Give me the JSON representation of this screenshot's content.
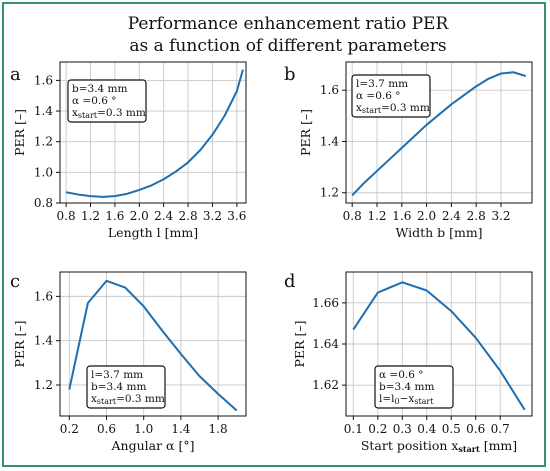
{
  "figure": {
    "title_line1": "Performance enhancement ratio PER",
    "title_line2": "as a function of different parameters",
    "accent_color": "#3a8f7c",
    "line_color": "#1f6fb0"
  },
  "chart_data": [
    {
      "type": "line",
      "panel": "a",
      "xlabel": "Length l [mm]",
      "ylabel": "PER [–]",
      "xlim": [
        0.7,
        3.75
      ],
      "ylim": [
        0.8,
        1.72
      ],
      "xticks": [
        0.8,
        1.2,
        1.6,
        2.0,
        2.4,
        2.8,
        3.2,
        3.6
      ],
      "xtick_labels": [
        "0.8",
        "1.2",
        "1.6",
        "2.0",
        "2.4",
        "2.8",
        "3.2",
        "3.6"
      ],
      "yticks": [
        0.8,
        1.0,
        1.2,
        1.4,
        1.6
      ],
      "ytick_labels": [
        "0.8",
        "1.0",
        "1.2",
        "1.4",
        "1.6"
      ],
      "grid": true,
      "legend_position": "top-left",
      "annotation": [
        {
          "main": "b=3.4 mm",
          "sub": ""
        },
        {
          "main": "α =0.6 °",
          "sub": ""
        },
        {
          "main": "x",
          "sub": "start",
          "rest": "=0.3 mm"
        }
      ],
      "x": [
        0.8,
        1.0,
        1.2,
        1.4,
        1.6,
        1.8,
        2.0,
        2.2,
        2.4,
        2.6,
        2.8,
        3.0,
        3.2,
        3.4,
        3.6,
        3.7
      ],
      "y": [
        0.87,
        0.855,
        0.845,
        0.84,
        0.845,
        0.86,
        0.885,
        0.915,
        0.955,
        1.005,
        1.065,
        1.145,
        1.245,
        1.37,
        1.53,
        1.67
      ]
    },
    {
      "type": "line",
      "panel": "b",
      "xlabel": "Width b [mm]",
      "ylabel": "PER [–]",
      "xlim": [
        0.7,
        3.7
      ],
      "ylim": [
        1.16,
        1.71
      ],
      "xticks": [
        0.8,
        1.2,
        1.6,
        2.0,
        2.4,
        2.8,
        3.2
      ],
      "xtick_labels": [
        "0.8",
        "1.2",
        "1.6",
        "2.0",
        "2.4",
        "2.8",
        "3.2"
      ],
      "yticks": [
        1.2,
        1.4,
        1.6
      ],
      "ytick_labels": [
        "1.2",
        "1.4",
        "1.6"
      ],
      "grid": true,
      "legend_position": "top-left",
      "annotation": [
        {
          "main": "l=3.7 mm",
          "sub": ""
        },
        {
          "main": "α =0.6 °",
          "sub": ""
        },
        {
          "main": "x",
          "sub": "start",
          "rest": "=0.3 mm"
        }
      ],
      "x": [
        0.8,
        1.0,
        1.2,
        1.4,
        1.6,
        1.8,
        2.0,
        2.2,
        2.4,
        2.6,
        2.8,
        3.0,
        3.2,
        3.4,
        3.6
      ],
      "y": [
        1.19,
        1.24,
        1.285,
        1.33,
        1.375,
        1.42,
        1.465,
        1.505,
        1.545,
        1.58,
        1.615,
        1.645,
        1.665,
        1.67,
        1.655
      ]
    },
    {
      "type": "line",
      "panel": "c",
      "xlabel": "Angular α [°]",
      "ylabel": "PER [–]",
      "xlim": [
        0.1,
        2.1
      ],
      "ylim": [
        1.06,
        1.71
      ],
      "xticks": [
        0.2,
        0.6,
        1.0,
        1.4,
        1.8
      ],
      "xtick_labels": [
        "0.2",
        "0.6",
        "1.0",
        "1.4",
        "1.8"
      ],
      "yticks": [
        1.2,
        1.4,
        1.6
      ],
      "ytick_labels": [
        "1.2",
        "1.4",
        "1.6"
      ],
      "grid": true,
      "legend_position": "bottom-left",
      "annotation": [
        {
          "main": "l=3.7 mm",
          "sub": ""
        },
        {
          "main": "b=3.4 mm",
          "sub": ""
        },
        {
          "main": "x",
          "sub": "start",
          "rest": "=0.3 mm"
        }
      ],
      "x": [
        0.2,
        0.4,
        0.6,
        0.8,
        1.0,
        1.2,
        1.4,
        1.6,
        1.8,
        2.0
      ],
      "y": [
        1.18,
        1.57,
        1.67,
        1.64,
        1.555,
        1.445,
        1.34,
        1.24,
        1.16,
        1.085
      ]
    },
    {
      "type": "line",
      "panel": "d",
      "xlabel": "Start position x",
      "xlabel_sub": "start",
      "xlabel_rest": " [mm]",
      "ylabel": "PER [–]",
      "xlim": [
        0.07,
        0.83
      ],
      "ylim": [
        1.605,
        1.675
      ],
      "xticks": [
        0.1,
        0.2,
        0.3,
        0.4,
        0.5,
        0.6,
        0.7
      ],
      "xtick_labels": [
        "0.1",
        "0.2",
        "0.3",
        "0.4",
        "0.5",
        "0.6",
        "0.7"
      ],
      "yticks": [
        1.62,
        1.64,
        1.66
      ],
      "ytick_labels": [
        "1.62",
        "1.64",
        "1.66"
      ],
      "grid": true,
      "legend_position": "bottom-left",
      "annotation": [
        {
          "main": "α =0.6 °",
          "sub": ""
        },
        {
          "main": "b=3.4 mm",
          "sub": ""
        },
        {
          "main": "l=l",
          "sub": "0",
          "rest": "−x",
          "sub2": "start"
        }
      ],
      "x": [
        0.1,
        0.2,
        0.3,
        0.4,
        0.5,
        0.6,
        0.7,
        0.8
      ],
      "y": [
        1.647,
        1.665,
        1.67,
        1.666,
        1.656,
        1.643,
        1.627,
        1.608
      ]
    }
  ]
}
